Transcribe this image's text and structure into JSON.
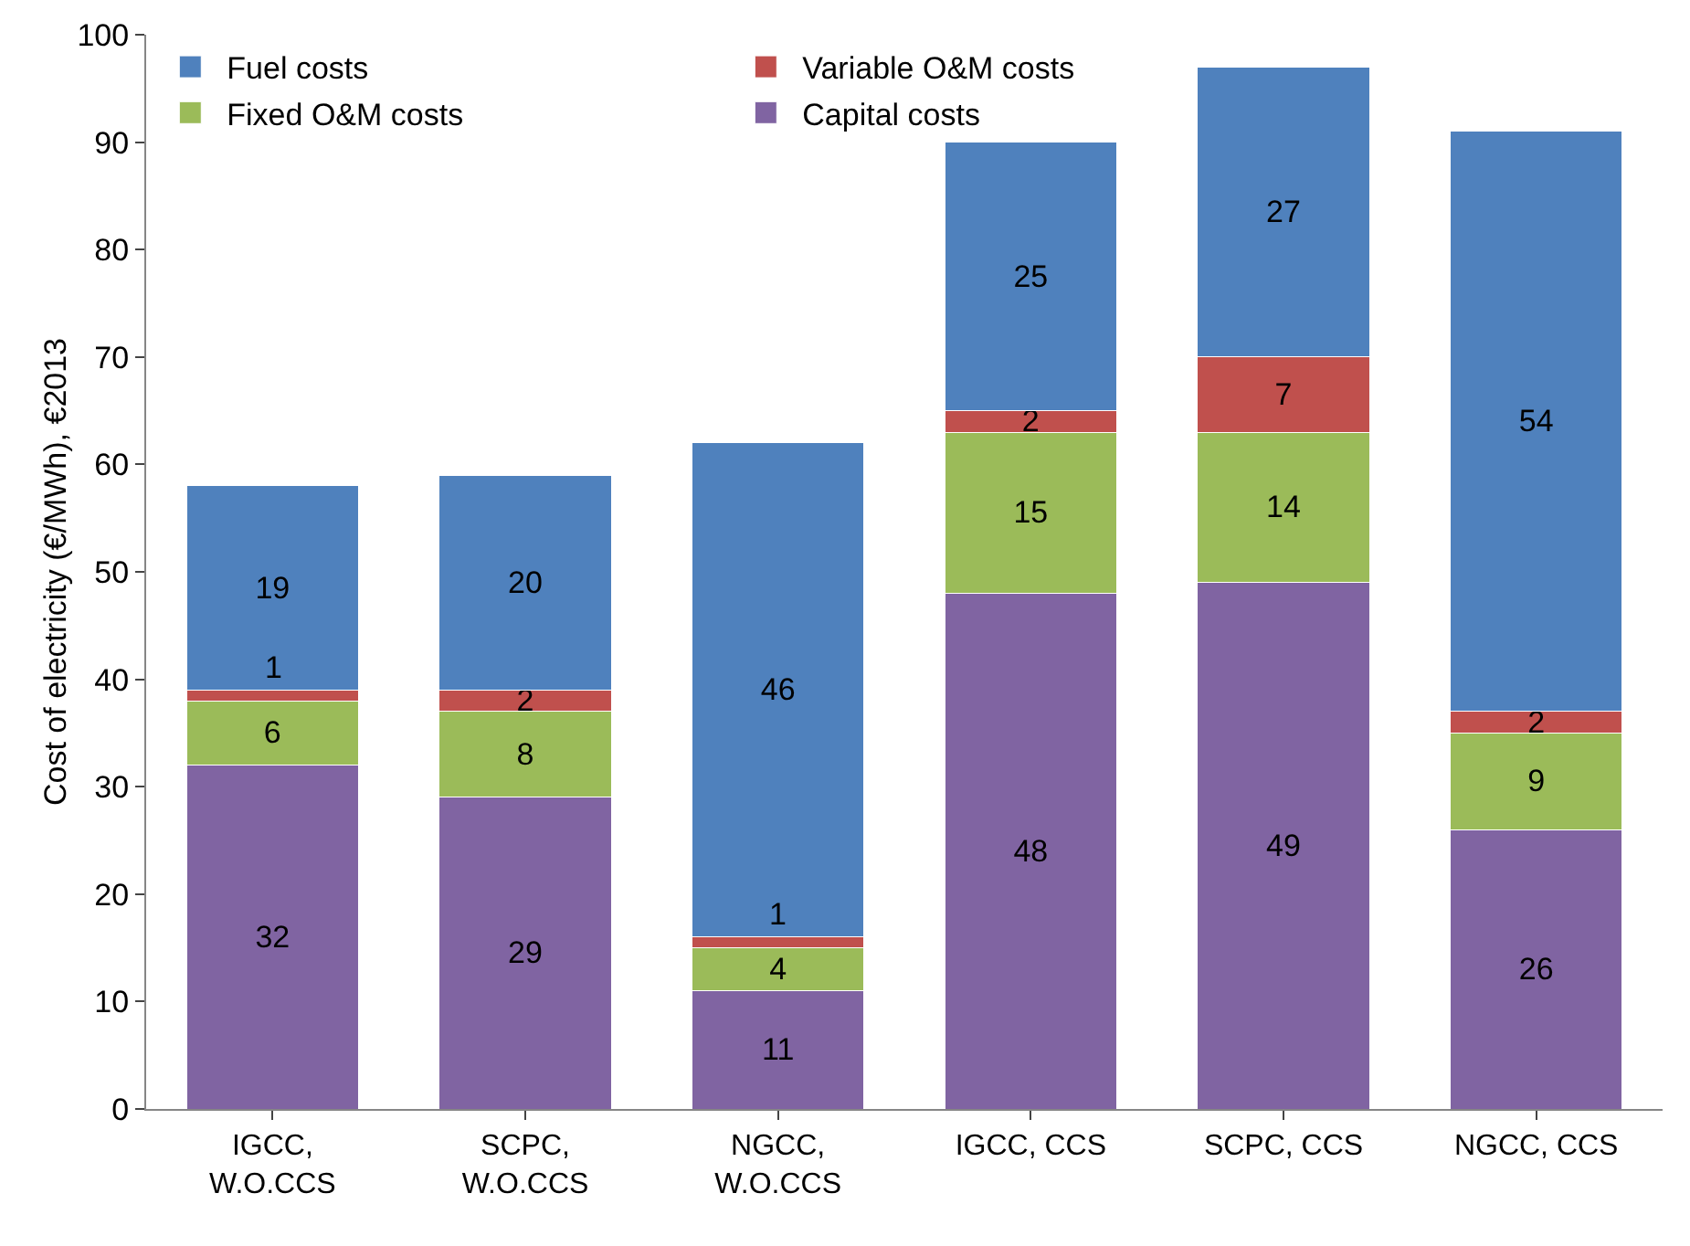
{
  "chart_data": {
    "type": "bar",
    "stacked": true,
    "ylabel": "Cost of electricity (€/MWh), €2013",
    "categories": [
      "IGCC,\nW.O.CCS",
      "SCPC,\nW.O.CCS",
      "NGCC,\nW.O.CCS",
      "IGCC, CCS",
      "SCPC, CCS",
      "NGCC, CCS"
    ],
    "series": [
      {
        "name": "Capital costs",
        "color": "#8064a2",
        "values": [
          32,
          29,
          11,
          48,
          49,
          26
        ]
      },
      {
        "name": "Fixed O&M costs",
        "color": "#9bbb59",
        "values": [
          6,
          8,
          4,
          15,
          14,
          9
        ]
      },
      {
        "name": "Variable O&M costs",
        "color": "#c0504d",
        "values": [
          1,
          2,
          1,
          2,
          7,
          2
        ]
      },
      {
        "name": "Fuel costs",
        "color": "#4f81bd",
        "values": [
          19,
          20,
          46,
          25,
          27,
          54
        ]
      }
    ],
    "ylim": [
      0,
      100
    ],
    "yticks": [
      0,
      10,
      20,
      30,
      40,
      50,
      60,
      70,
      80,
      90,
      100
    ],
    "grid": false,
    "legend": "top left",
    "data_labels": true
  }
}
